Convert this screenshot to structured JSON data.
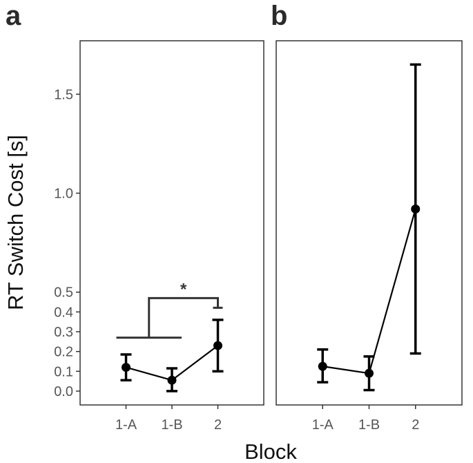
{
  "colors": {
    "background": "#ffffff",
    "panel_border": "#333333",
    "data": "#000000",
    "bracket": "#333333",
    "tick_text": "#555555"
  },
  "chart_data": [
    {
      "panel": "a",
      "type": "line",
      "title": "",
      "xlabel": "Block",
      "ylabel": "RT Switch Cost [s]",
      "categories": [
        "1-A",
        "1-B",
        "2"
      ],
      "ylim": [
        -0.07,
        1.77
      ],
      "yticks": [
        0.0,
        0.1,
        0.2,
        0.3,
        0.4,
        0.5,
        1.0,
        1.5
      ],
      "ytick_labels": [
        "0.0",
        "0.1",
        "0.2",
        "0.3",
        "0.4",
        "0.5",
        "1.0",
        "1.5"
      ],
      "series": [
        {
          "name": "RT Switch Cost",
          "values": [
            0.12,
            0.055,
            0.23
          ],
          "error_lower": [
            0.055,
            0.0,
            0.1
          ],
          "error_upper": [
            0.185,
            0.115,
            0.36
          ]
        }
      ],
      "annotations": [
        {
          "type": "significance",
          "label": "*",
          "from": [
            "1-A",
            "1-B"
          ],
          "to": "2",
          "group_line_y": 0.27,
          "bracket_y": 0.47
        }
      ]
    },
    {
      "panel": "b",
      "type": "line",
      "title": "",
      "xlabel": "Block",
      "ylabel": "",
      "categories": [
        "1-A",
        "1-B",
        "2"
      ],
      "ylim": [
        -0.07,
        1.77
      ],
      "series": [
        {
          "name": "RT Switch Cost",
          "values": [
            0.125,
            0.09,
            0.92
          ],
          "error_lower": [
            0.045,
            0.005,
            0.19
          ],
          "error_upper": [
            0.21,
            0.175,
            1.65
          ]
        }
      ],
      "annotations": []
    }
  ]
}
